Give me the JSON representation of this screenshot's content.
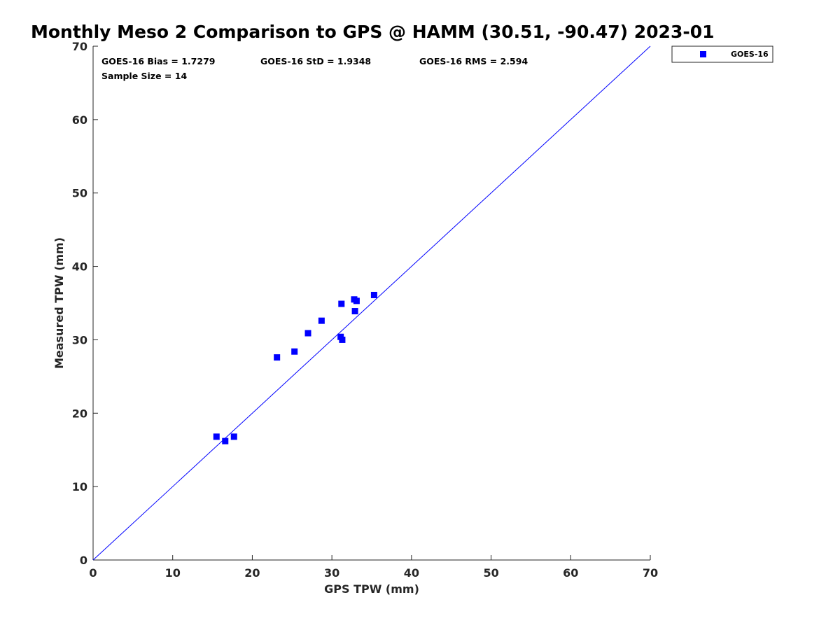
{
  "chart_data": {
    "type": "scatter",
    "title": "Monthly Meso 2 Comparison to GPS @ HAMM (30.51, -90.47) 2023-01",
    "xlabel": "GPS TPW (mm)",
    "ylabel": "Measured TPW (mm)",
    "xlim": [
      0,
      70
    ],
    "ylim": [
      0,
      70
    ],
    "xticks": [
      "0",
      "10",
      "20",
      "30",
      "40",
      "50",
      "60",
      "70"
    ],
    "yticks": [
      "0",
      "10",
      "20",
      "30",
      "40",
      "50",
      "60",
      "70"
    ],
    "grid": false,
    "legend_position": "outside-top-right",
    "reference_line": {
      "x": [
        0,
        70
      ],
      "y": [
        0,
        70
      ],
      "color": "#0000ff"
    },
    "stats": {
      "bias": "GOES-16 Bias = 1.7279",
      "std": "GOES-16 StD = 1.9348",
      "rms": "GOES-16 RMS = 2.594",
      "sample_size": "Sample Size = 14"
    },
    "series": [
      {
        "name": "GOES-16",
        "color": "#0000ff",
        "marker": "square",
        "points": [
          {
            "x": 15.5,
            "y": 16.8
          },
          {
            "x": 16.6,
            "y": 16.2
          },
          {
            "x": 17.7,
            "y": 16.8
          },
          {
            "x": 23.1,
            "y": 27.6
          },
          {
            "x": 25.3,
            "y": 28.4
          },
          {
            "x": 27.0,
            "y": 30.9
          },
          {
            "x": 28.7,
            "y": 32.6
          },
          {
            "x": 31.1,
            "y": 30.4
          },
          {
            "x": 31.3,
            "y": 30.0
          },
          {
            "x": 31.2,
            "y": 34.9
          },
          {
            "x": 32.8,
            "y": 35.5
          },
          {
            "x": 33.1,
            "y": 35.3
          },
          {
            "x": 32.9,
            "y": 33.9
          },
          {
            "x": 35.3,
            "y": 36.1
          }
        ]
      }
    ]
  }
}
